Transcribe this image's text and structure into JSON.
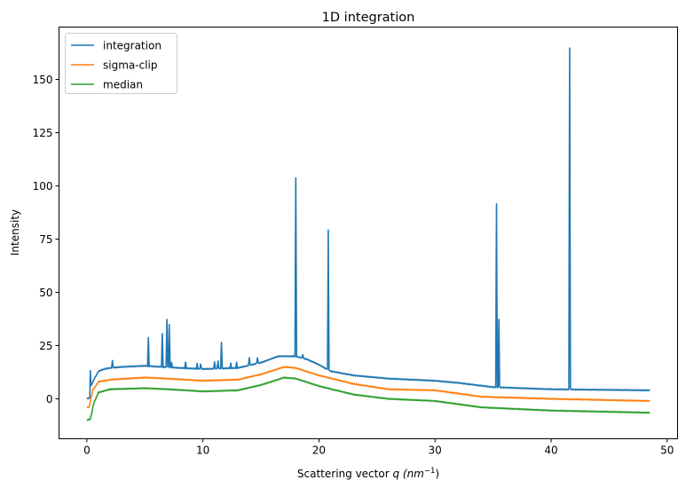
{
  "chart_data": {
    "type": "line",
    "title": "1D integration",
    "xlabel": "Scattering vector q (nm⁻¹)",
    "xlabel_parts": {
      "prefix": "Scattering vector ",
      "var": "q",
      "unit_open": " (nm",
      "unit_exp": "−1",
      "unit_close": ")"
    },
    "ylabel": "Intensity",
    "xlim": [
      -2.4,
      50.9
    ],
    "ylim": [
      -18.75,
      174.6
    ],
    "xticks": [
      0,
      10,
      20,
      30,
      40,
      50
    ],
    "yticks": [
      0,
      25,
      50,
      75,
      100,
      125,
      150
    ],
    "grid": false,
    "legend": "top-left",
    "series": [
      {
        "name": "integration",
        "color": "#1f77b4",
        "points": [
          [
            0,
            0
          ],
          [
            0.25,
            0.5
          ],
          [
            0.3,
            13.5
          ],
          [
            0.35,
            6
          ],
          [
            0.6,
            9
          ],
          [
            1,
            13
          ],
          [
            1.5,
            14
          ],
          [
            2,
            14.5
          ],
          [
            3,
            15
          ],
          [
            5,
            15.5
          ],
          [
            7,
            14.8
          ],
          [
            10,
            14
          ],
          [
            13,
            14.5
          ],
          [
            15,
            17
          ],
          [
            16.5,
            20
          ],
          [
            18,
            20
          ],
          [
            19,
            18.5
          ],
          [
            20,
            16
          ],
          [
            21,
            13
          ],
          [
            23,
            11
          ],
          [
            26,
            9.5
          ],
          [
            30,
            8.5
          ],
          [
            32,
            7.5
          ],
          [
            35,
            5.5
          ],
          [
            40,
            4.5
          ],
          [
            48.5,
            4
          ]
        ],
        "peaks": [
          [
            2.2,
            18
          ],
          [
            5.3,
            28.5
          ],
          [
            6.5,
            30.5
          ],
          [
            6.9,
            37.5
          ],
          [
            7.1,
            35
          ],
          [
            7.3,
            17
          ],
          [
            8.5,
            17
          ],
          [
            9.5,
            16.5
          ],
          [
            9.8,
            16.5
          ],
          [
            11,
            17.5
          ],
          [
            11.3,
            18
          ],
          [
            11.6,
            26.5
          ],
          [
            12.4,
            16.5
          ],
          [
            12.9,
            17
          ],
          [
            14,
            19.5
          ],
          [
            14.7,
            19.5
          ],
          [
            18.0,
            103.5
          ],
          [
            18.6,
            21
          ],
          [
            20.8,
            79.5
          ],
          [
            35.3,
            91.5
          ],
          [
            35.5,
            37.5
          ],
          [
            41.6,
            165
          ]
        ]
      },
      {
        "name": "sigma-clip",
        "color": "#ff7f0e",
        "points": [
          [
            0,
            -4
          ],
          [
            0.2,
            -4
          ],
          [
            0.5,
            4
          ],
          [
            1,
            8
          ],
          [
            2,
            9
          ],
          [
            5,
            10
          ],
          [
            7,
            9.5
          ],
          [
            10,
            8.5
          ],
          [
            13,
            9
          ],
          [
            15,
            11.5
          ],
          [
            17,
            15
          ],
          [
            18,
            14.5
          ],
          [
            20,
            11
          ],
          [
            23,
            7
          ],
          [
            26,
            4.5
          ],
          [
            30,
            4
          ],
          [
            32,
            2.5
          ],
          [
            34,
            1
          ],
          [
            40,
            0
          ],
          [
            48.5,
            -1
          ]
        ],
        "peaks": []
      },
      {
        "name": "median",
        "color": "#2ca02c",
        "points": [
          [
            0,
            -10
          ],
          [
            0.3,
            -9.5
          ],
          [
            0.6,
            -2
          ],
          [
            1,
            3
          ],
          [
            2,
            4.5
          ],
          [
            5,
            5
          ],
          [
            7,
            4.5
          ],
          [
            10,
            3.5
          ],
          [
            13,
            4
          ],
          [
            15,
            6.5
          ],
          [
            17,
            10
          ],
          [
            18,
            9.5
          ],
          [
            20,
            6
          ],
          [
            23,
            2
          ],
          [
            26,
            0
          ],
          [
            30,
            -1
          ],
          [
            32,
            -2.5
          ],
          [
            34,
            -4
          ],
          [
            40,
            -5.5
          ],
          [
            48.5,
            -6.5
          ]
        ],
        "peaks": []
      }
    ]
  }
}
